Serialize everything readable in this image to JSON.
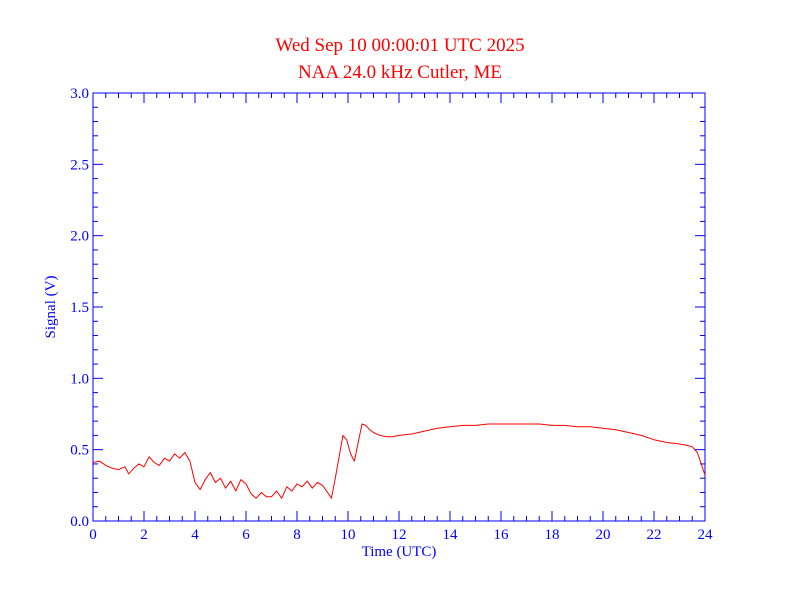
{
  "chart_data": {
    "type": "line",
    "title": "Wed Sep 10 00:00:01 UTC 2025",
    "subtitle": "NAA 24.0 kHz Cutler, ME",
    "xlabel": "Time (UTC)",
    "ylabel": "Signal (V)",
    "xlim": [
      0,
      24
    ],
    "ylim": [
      0,
      3
    ],
    "x_ticks": [
      0,
      2,
      4,
      6,
      8,
      10,
      12,
      14,
      16,
      18,
      20,
      22,
      24
    ],
    "x_tick_labels": [
      "0",
      "2",
      "4",
      "6",
      "8",
      "10",
      "12",
      "14",
      "16",
      "18",
      "20",
      "22",
      "24"
    ],
    "y_ticks": [
      0,
      0.5,
      1,
      1.5,
      2,
      2.5,
      3
    ],
    "y_tick_labels": [
      "0.0",
      "0.5",
      "1.0",
      "1.5",
      "2.0",
      "2.5",
      "3.0"
    ],
    "grid": false,
    "series": [
      {
        "color": "#ff0000",
        "x": [
          0,
          0.25,
          0.5,
          0.75,
          1.0,
          1.25,
          1.4,
          1.6,
          1.8,
          2.0,
          2.2,
          2.4,
          2.6,
          2.8,
          3.0,
          3.2,
          3.4,
          3.6,
          3.8,
          4.0,
          4.2,
          4.4,
          4.6,
          4.8,
          5.0,
          5.2,
          5.4,
          5.6,
          5.8,
          6.0,
          6.2,
          6.4,
          6.6,
          6.8,
          7.0,
          7.2,
          7.4,
          7.6,
          7.8,
          8.0,
          8.2,
          8.4,
          8.6,
          8.8,
          9.0,
          9.2,
          9.35,
          9.5,
          9.65,
          9.8,
          9.95,
          10.1,
          10.25,
          10.4,
          10.55,
          10.7,
          10.85,
          11.0,
          11.25,
          11.5,
          11.75,
          12.0,
          12.5,
          13.0,
          13.5,
          14.0,
          14.5,
          15.0,
          15.5,
          16.0,
          16.5,
          17.0,
          17.5,
          18.0,
          18.5,
          19.0,
          19.5,
          20.0,
          20.5,
          21.0,
          21.5,
          22.0,
          22.5,
          23.0,
          23.3,
          23.5,
          23.7,
          23.85,
          24.0
        ],
        "y": [
          0.41,
          0.42,
          0.39,
          0.37,
          0.36,
          0.38,
          0.33,
          0.37,
          0.4,
          0.38,
          0.45,
          0.41,
          0.39,
          0.44,
          0.42,
          0.47,
          0.44,
          0.48,
          0.42,
          0.27,
          0.22,
          0.29,
          0.34,
          0.27,
          0.3,
          0.23,
          0.28,
          0.21,
          0.29,
          0.26,
          0.19,
          0.16,
          0.2,
          0.17,
          0.17,
          0.21,
          0.16,
          0.24,
          0.21,
          0.26,
          0.24,
          0.28,
          0.23,
          0.27,
          0.25,
          0.2,
          0.16,
          0.3,
          0.45,
          0.6,
          0.57,
          0.47,
          0.42,
          0.55,
          0.68,
          0.67,
          0.64,
          0.62,
          0.6,
          0.59,
          0.59,
          0.6,
          0.61,
          0.63,
          0.65,
          0.66,
          0.67,
          0.67,
          0.68,
          0.68,
          0.68,
          0.68,
          0.68,
          0.67,
          0.67,
          0.66,
          0.66,
          0.65,
          0.64,
          0.62,
          0.6,
          0.57,
          0.55,
          0.54,
          0.53,
          0.52,
          0.48,
          0.4,
          0.32
        ]
      }
    ]
  }
}
